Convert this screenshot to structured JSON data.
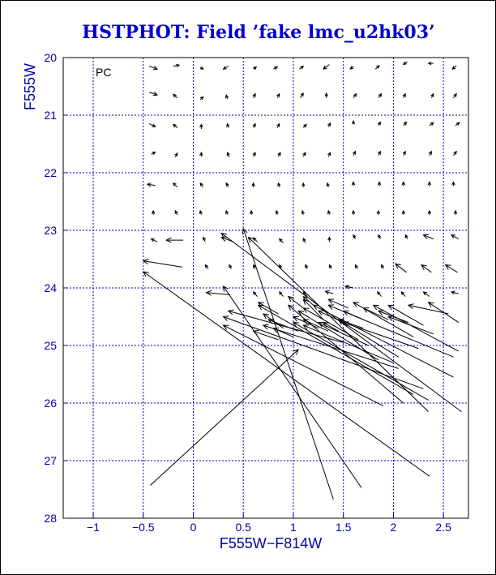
{
  "chart_data": {
    "type": "quiver",
    "title": "HSTPHOT: Field ’fake lmc_u2hk03’",
    "xlabel": "F555W−F814W",
    "ylabel": "F555W",
    "xlim": [
      -1.3,
      2.75
    ],
    "ylim": [
      28,
      20
    ],
    "x_ticks": [
      -1,
      -0.5,
      0,
      0.5,
      1,
      1.5,
      2,
      2.5
    ],
    "x_tick_labels": [
      "−1",
      "−0.5",
      "0",
      "0.5",
      "1",
      "1.5",
      "2",
      "2.5"
    ],
    "y_ticks": [
      20,
      21,
      22,
      23,
      24,
      25,
      26,
      27,
      28
    ],
    "y_tick_labels": [
      "20",
      "21",
      "22",
      "23",
      "24",
      "25",
      "26",
      "27",
      "28"
    ],
    "grid": true,
    "annotation": "PC",
    "vectors": [
      {
        "x0": -0.44,
        "y0": 20.15,
        "x1": -0.36,
        "y1": 20.2
      },
      {
        "x0": -0.2,
        "y0": 20.15,
        "x1": -0.14,
        "y1": 20.13
      },
      {
        "x0": 0.07,
        "y0": 20.17,
        "x1": 0.1,
        "y1": 20.2
      },
      {
        "x0": 0.35,
        "y0": 20.15,
        "x1": 0.3,
        "y1": 20.2
      },
      {
        "x0": 0.6,
        "y0": 20.2,
        "x1": 0.63,
        "y1": 20.16
      },
      {
        "x0": 0.8,
        "y0": 20.2,
        "x1": 0.84,
        "y1": 20.16
      },
      {
        "x0": 1.06,
        "y0": 20.2,
        "x1": 1.1,
        "y1": 20.15
      },
      {
        "x0": 1.36,
        "y0": 20.12,
        "x1": 1.3,
        "y1": 20.2
      },
      {
        "x0": 1.6,
        "y0": 20.15,
        "x1": 1.57,
        "y1": 20.2
      },
      {
        "x0": 1.82,
        "y0": 20.2,
        "x1": 1.86,
        "y1": 20.14
      },
      {
        "x0": 2.14,
        "y0": 20.07,
        "x1": 2.1,
        "y1": 20.12
      },
      {
        "x0": 2.4,
        "y0": 20.1,
        "x1": 2.35,
        "y1": 20.1
      },
      {
        "x0": 2.63,
        "y0": 20.14,
        "x1": 2.59,
        "y1": 20.2
      },
      {
        "x0": -0.44,
        "y0": 20.6,
        "x1": -0.36,
        "y1": 20.65
      },
      {
        "x0": -0.16,
        "y0": 20.7,
        "x1": -0.2,
        "y1": 20.64
      },
      {
        "x0": 0.07,
        "y0": 20.73,
        "x1": 0.1,
        "y1": 20.68
      },
      {
        "x0": 0.34,
        "y0": 20.72,
        "x1": 0.33,
        "y1": 20.65
      },
      {
        "x0": 0.6,
        "y0": 20.7,
        "x1": 0.62,
        "y1": 20.63
      },
      {
        "x0": 0.84,
        "y0": 20.7,
        "x1": 0.86,
        "y1": 20.63
      },
      {
        "x0": 1.07,
        "y0": 20.7,
        "x1": 1.1,
        "y1": 20.62
      },
      {
        "x0": 1.33,
        "y0": 20.7,
        "x1": 1.33,
        "y1": 20.62
      },
      {
        "x0": 1.6,
        "y0": 20.7,
        "x1": 1.63,
        "y1": 20.63
      },
      {
        "x0": 1.85,
        "y0": 20.7,
        "x1": 1.88,
        "y1": 20.63
      },
      {
        "x0": 2.1,
        "y0": 20.7,
        "x1": 2.12,
        "y1": 20.63
      },
      {
        "x0": 2.38,
        "y0": 20.7,
        "x1": 2.4,
        "y1": 20.63
      },
      {
        "x0": 2.6,
        "y0": 20.7,
        "x1": 2.63,
        "y1": 20.63
      },
      {
        "x0": -0.44,
        "y0": 21.15,
        "x1": -0.38,
        "y1": 21.2
      },
      {
        "x0": -0.16,
        "y0": 21.22,
        "x1": -0.2,
        "y1": 21.16
      },
      {
        "x0": 0.08,
        "y0": 21.24,
        "x1": 0.08,
        "y1": 21.16
      },
      {
        "x0": 0.35,
        "y0": 21.22,
        "x1": 0.34,
        "y1": 21.15
      },
      {
        "x0": 0.6,
        "y0": 21.22,
        "x1": 0.62,
        "y1": 21.15
      },
      {
        "x0": 0.84,
        "y0": 21.22,
        "x1": 0.86,
        "y1": 21.15
      },
      {
        "x0": 1.1,
        "y0": 21.22,
        "x1": 1.13,
        "y1": 21.16
      },
      {
        "x0": 1.35,
        "y0": 21.2,
        "x1": 1.37,
        "y1": 21.14
      },
      {
        "x0": 1.6,
        "y0": 21.16,
        "x1": 1.6,
        "y1": 21.1
      },
      {
        "x0": 1.85,
        "y0": 21.18,
        "x1": 1.87,
        "y1": 21.12
      },
      {
        "x0": 2.1,
        "y0": 21.18,
        "x1": 2.13,
        "y1": 21.12
      },
      {
        "x0": 2.36,
        "y0": 21.18,
        "x1": 2.4,
        "y1": 21.13
      },
      {
        "x0": 2.62,
        "y0": 21.18,
        "x1": 2.66,
        "y1": 21.13
      },
      {
        "x0": -0.42,
        "y0": 21.68,
        "x1": -0.38,
        "y1": 21.64
      },
      {
        "x0": -0.18,
        "y0": 21.73,
        "x1": -0.16,
        "y1": 21.66
      },
      {
        "x0": 0.08,
        "y0": 21.72,
        "x1": 0.08,
        "y1": 21.65
      },
      {
        "x0": 0.36,
        "y0": 21.73,
        "x1": 0.34,
        "y1": 21.65
      },
      {
        "x0": 0.6,
        "y0": 21.72,
        "x1": 0.62,
        "y1": 21.65
      },
      {
        "x0": 0.85,
        "y0": 21.72,
        "x1": 0.87,
        "y1": 21.65
      },
      {
        "x0": 1.1,
        "y0": 21.72,
        "x1": 1.12,
        "y1": 21.65
      },
      {
        "x0": 1.35,
        "y0": 21.72,
        "x1": 1.37,
        "y1": 21.65
      },
      {
        "x0": 1.6,
        "y0": 21.7,
        "x1": 1.62,
        "y1": 21.63
      },
      {
        "x0": 1.85,
        "y0": 21.7,
        "x1": 1.87,
        "y1": 21.63
      },
      {
        "x0": 2.1,
        "y0": 21.7,
        "x1": 2.12,
        "y1": 21.63
      },
      {
        "x0": 2.36,
        "y0": 21.7,
        "x1": 2.38,
        "y1": 21.63
      },
      {
        "x0": 2.6,
        "y0": 21.7,
        "x1": 2.63,
        "y1": 21.63
      },
      {
        "x0": -0.38,
        "y0": 22.22,
        "x1": -0.46,
        "y1": 22.2
      },
      {
        "x0": -0.16,
        "y0": 22.25,
        "x1": -0.2,
        "y1": 22.18
      },
      {
        "x0": 0.1,
        "y0": 22.25,
        "x1": 0.07,
        "y1": 22.18
      },
      {
        "x0": 0.35,
        "y0": 22.25,
        "x1": 0.33,
        "y1": 22.18
      },
      {
        "x0": 0.6,
        "y0": 22.25,
        "x1": 0.6,
        "y1": 22.18
      },
      {
        "x0": 0.86,
        "y0": 22.25,
        "x1": 0.85,
        "y1": 22.18
      },
      {
        "x0": 1.1,
        "y0": 22.25,
        "x1": 1.1,
        "y1": 22.18
      },
      {
        "x0": 1.35,
        "y0": 22.25,
        "x1": 1.34,
        "y1": 22.18
      },
      {
        "x0": 1.6,
        "y0": 22.23,
        "x1": 1.6,
        "y1": 22.16
      },
      {
        "x0": 1.86,
        "y0": 22.23,
        "x1": 1.86,
        "y1": 22.16
      },
      {
        "x0": 2.1,
        "y0": 22.23,
        "x1": 2.1,
        "y1": 22.16
      },
      {
        "x0": 2.36,
        "y0": 22.23,
        "x1": 2.36,
        "y1": 22.16
      },
      {
        "x0": 2.6,
        "y0": 22.23,
        "x1": 2.6,
        "y1": 22.16
      },
      {
        "x0": -0.4,
        "y0": 22.73,
        "x1": -0.4,
        "y1": 22.66
      },
      {
        "x0": -0.16,
        "y0": 22.73,
        "x1": -0.18,
        "y1": 22.66
      },
      {
        "x0": 0.08,
        "y0": 22.73,
        "x1": 0.07,
        "y1": 22.66
      },
      {
        "x0": 0.34,
        "y0": 22.73,
        "x1": 0.33,
        "y1": 22.66
      },
      {
        "x0": 0.58,
        "y0": 22.73,
        "x1": 0.58,
        "y1": 22.66
      },
      {
        "x0": 0.84,
        "y0": 22.73,
        "x1": 0.83,
        "y1": 22.66
      },
      {
        "x0": 1.1,
        "y0": 22.73,
        "x1": 1.09,
        "y1": 22.66
      },
      {
        "x0": 1.36,
        "y0": 22.73,
        "x1": 1.35,
        "y1": 22.66
      },
      {
        "x0": 1.6,
        "y0": 22.73,
        "x1": 1.6,
        "y1": 22.66
      },
      {
        "x0": 1.85,
        "y0": 22.73,
        "x1": 1.85,
        "y1": 22.66
      },
      {
        "x0": 2.1,
        "y0": 22.73,
        "x1": 2.1,
        "y1": 22.66
      },
      {
        "x0": 2.36,
        "y0": 22.73,
        "x1": 2.36,
        "y1": 22.66
      },
      {
        "x0": 2.62,
        "y0": 22.73,
        "x1": 2.62,
        "y1": 22.66
      },
      {
        "x0": -0.36,
        "y0": 23.2,
        "x1": -0.42,
        "y1": 23.15
      },
      {
        "x0": -0.1,
        "y0": 23.17,
        "x1": -0.27,
        "y1": 23.17
      },
      {
        "x0": 0.12,
        "y0": 23.2,
        "x1": 0.1,
        "y1": 23.12
      },
      {
        "x0": 0.4,
        "y0": 23.2,
        "x1": 0.28,
        "y1": 23.12
      },
      {
        "x0": 0.64,
        "y0": 23.2,
        "x1": 0.6,
        "y1": 23.13
      },
      {
        "x0": 0.9,
        "y0": 23.22,
        "x1": 0.86,
        "y1": 23.15
      },
      {
        "x0": 1.12,
        "y0": 23.22,
        "x1": 1.1,
        "y1": 23.14
      },
      {
        "x0": 1.36,
        "y0": 23.2,
        "x1": 1.36,
        "y1": 23.12
      },
      {
        "x0": 1.62,
        "y0": 23.15,
        "x1": 1.6,
        "y1": 23.08
      },
      {
        "x0": 1.87,
        "y0": 23.15,
        "x1": 1.85,
        "y1": 23.08
      },
      {
        "x0": 2.14,
        "y0": 23.15,
        "x1": 2.12,
        "y1": 23.08
      },
      {
        "x0": 2.4,
        "y0": 23.15,
        "x1": 2.3,
        "y1": 23.08
      },
      {
        "x0": 2.65,
        "y0": 23.15,
        "x1": 2.58,
        "y1": 23.08
      },
      {
        "x0": -0.11,
        "y0": 23.64,
        "x1": -0.5,
        "y1": 23.53
      },
      {
        "x0": 0.15,
        "y0": 23.67,
        "x1": 0.12,
        "y1": 23.6
      },
      {
        "x0": 0.38,
        "y0": 23.67,
        "x1": 0.36,
        "y1": 23.6
      },
      {
        "x0": 0.62,
        "y0": 23.67,
        "x1": 0.6,
        "y1": 23.6
      },
      {
        "x0": 0.88,
        "y0": 23.67,
        "x1": 0.86,
        "y1": 23.6
      },
      {
        "x0": 1.14,
        "y0": 23.67,
        "x1": 1.12,
        "y1": 23.6
      },
      {
        "x0": 1.38,
        "y0": 23.67,
        "x1": 1.36,
        "y1": 23.6
      },
      {
        "x0": 1.64,
        "y0": 23.67,
        "x1": 1.62,
        "y1": 23.6
      },
      {
        "x0": 1.9,
        "y0": 23.67,
        "x1": 1.88,
        "y1": 23.6
      },
      {
        "x0": 2.13,
        "y0": 23.73,
        "x1": 2.02,
        "y1": 23.58
      },
      {
        "x0": 2.38,
        "y0": 23.73,
        "x1": 2.28,
        "y1": 23.6
      },
      {
        "x0": 2.64,
        "y0": 23.73,
        "x1": 2.52,
        "y1": 23.6
      },
      {
        "x0": 0.37,
        "y0": 24.12,
        "x1": 0.13,
        "y1": 24.08
      },
      {
        "x0": 0.64,
        "y0": 24.15,
        "x1": 0.6,
        "y1": 24.07
      },
      {
        "x0": 0.9,
        "y0": 24.15,
        "x1": 0.86,
        "y1": 24.07
      },
      {
        "x0": 1.14,
        "y0": 24.15,
        "x1": 1.1,
        "y1": 24.07
      },
      {
        "x0": 1.4,
        "y0": 24.1,
        "x1": 1.32,
        "y1": 24.06
      },
      {
        "x0": 1.6,
        "y0": 24.0,
        "x1": 1.52,
        "y1": 23.97
      },
      {
        "x0": 1.88,
        "y0": 24.15,
        "x1": 1.84,
        "y1": 24.07
      },
      {
        "x0": 2.12,
        "y0": 24.15,
        "x1": 2.08,
        "y1": 24.07
      },
      {
        "x0": 2.36,
        "y0": 24.15,
        "x1": 2.3,
        "y1": 24.07
      },
      {
        "x0": 2.65,
        "y0": 24.1,
        "x1": 2.58,
        "y1": 24.07
      },
      {
        "x0": 2.36,
        "y0": 27.27,
        "x1": -0.5,
        "y1": 23.72
      },
      {
        "x0": 1.68,
        "y0": 27.47,
        "x1": 0.3,
        "y1": 23.97
      },
      {
        "x0": 1.4,
        "y0": 27.67,
        "x1": 0.5,
        "y1": 22.97
      },
      {
        "x0": -0.43,
        "y0": 27.43,
        "x1": 1.05,
        "y1": 25.07
      },
      {
        "x0": 2.35,
        "y0": 26.15,
        "x1": 0.55,
        "y1": 23.12
      },
      {
        "x0": 2.68,
        "y0": 26.15,
        "x1": 0.28,
        "y1": 23.05
      },
      {
        "x0": 2.1,
        "y0": 26.0,
        "x1": 0.95,
        "y1": 24.3
      },
      {
        "x0": 1.9,
        "y0": 26.05,
        "x1": 0.3,
        "y1": 24.65
      },
      {
        "x0": 2.35,
        "y0": 25.95,
        "x1": 1.0,
        "y1": 24.6
      },
      {
        "x0": 2.2,
        "y0": 25.85,
        "x1": 0.65,
        "y1": 24.3
      },
      {
        "x0": 2.3,
        "y0": 25.75,
        "x1": 0.3,
        "y1": 24.5
      },
      {
        "x0": 2.05,
        "y0": 25.4,
        "x1": 0.7,
        "y1": 24.65
      },
      {
        "x0": 2.6,
        "y0": 25.55,
        "x1": 1.2,
        "y1": 24.3
      },
      {
        "x0": 2.6,
        "y0": 25.2,
        "x1": 1.35,
        "y1": 24.3
      },
      {
        "x0": 2.65,
        "y0": 25.1,
        "x1": 1.8,
        "y1": 24.3
      },
      {
        "x0": 2.05,
        "y0": 25.2,
        "x1": 1.45,
        "y1": 24.55
      },
      {
        "x0": 1.85,
        "y0": 25.25,
        "x1": 1.05,
        "y1": 24.4
      },
      {
        "x0": 2.2,
        "y0": 24.85,
        "x1": 1.6,
        "y1": 24.25
      },
      {
        "x0": 2.4,
        "y0": 24.8,
        "x1": 1.95,
        "y1": 24.5
      },
      {
        "x0": 2.55,
        "y0": 24.45,
        "x1": 2.15,
        "y1": 24.3
      },
      {
        "x0": 2.65,
        "y0": 24.6,
        "x1": 2.35,
        "y1": 24.25
      },
      {
        "x0": 2.3,
        "y0": 24.65,
        "x1": 1.95,
        "y1": 24.3
      },
      {
        "x0": 1.65,
        "y0": 24.9,
        "x1": 1.1,
        "y1": 24.35
      },
      {
        "x0": 1.5,
        "y0": 24.6,
        "x1": 1.25,
        "y1": 24.4
      },
      {
        "x0": 1.3,
        "y0": 24.55,
        "x1": 1.1,
        "y1": 24.2
      },
      {
        "x0": 1.1,
        "y0": 24.35,
        "x1": 0.95,
        "y1": 24.15
      },
      {
        "x0": 1.55,
        "y0": 24.35,
        "x1": 1.35,
        "y1": 24.2
      },
      {
        "x0": 1.95,
        "y0": 24.55,
        "x1": 1.7,
        "y1": 24.35
      },
      {
        "x0": 1.7,
        "y0": 24.55,
        "x1": 1.5,
        "y1": 24.4
      },
      {
        "x0": 2.15,
        "y0": 24.6,
        "x1": 1.85,
        "y1": 24.4
      },
      {
        "x0": 0.9,
        "y0": 24.7,
        "x1": 0.7,
        "y1": 24.45
      },
      {
        "x0": 1.05,
        "y0": 24.75,
        "x1": 0.75,
        "y1": 24.55
      },
      {
        "x0": 1.35,
        "y0": 24.75,
        "x1": 1.1,
        "y1": 24.55
      },
      {
        "x0": 1.25,
        "y0": 24.7,
        "x1": 1.0,
        "y1": 24.5
      },
      {
        "x0": 1.7,
        "y0": 24.7,
        "x1": 1.45,
        "y1": 24.55
      },
      {
        "x0": 1.45,
        "y0": 24.75,
        "x1": 1.3,
        "y1": 24.6
      },
      {
        "x0": 0.85,
        "y0": 24.45,
        "x1": 0.65,
        "y1": 24.25
      },
      {
        "x0": 1.2,
        "y0": 24.3,
        "x1": 1.1,
        "y1": 24.15
      },
      {
        "x0": 1.5,
        "y0": 24.95,
        "x1": 0.35,
        "y1": 24.4
      },
      {
        "x0": 2.0,
        "y0": 25.3,
        "x1": 1.1,
        "y1": 24.65
      },
      {
        "x0": 2.25,
        "y0": 25.05,
        "x1": 1.5,
        "y1": 24.6
      },
      {
        "x0": 1.75,
        "y0": 25.0,
        "x1": 1.25,
        "y1": 24.6
      },
      {
        "x0": 0.85,
        "y0": 24.9,
        "x1": 0.6,
        "y1": 24.75
      },
      {
        "x0": 1.0,
        "y0": 24.85,
        "x1": 0.8,
        "y1": 24.7
      }
    ]
  }
}
